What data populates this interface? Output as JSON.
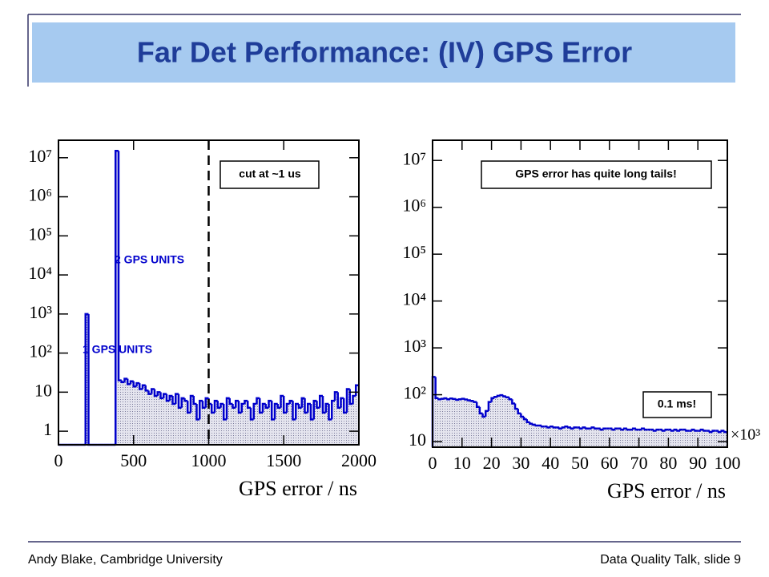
{
  "title": "Far Det Performance: (IV) GPS Error",
  "footer": {
    "left": "Andy Blake, Cambridge University",
    "right": "Data Quality Talk, slide 9"
  },
  "chart_data": [
    {
      "type": "histogram",
      "xlabel": "GPS error / ns",
      "log_y": true,
      "color": "#0000cc",
      "xlim": [
        0,
        2000
      ],
      "xticks": [
        0,
        500,
        1000,
        1500,
        2000
      ],
      "ylim": [
        0.45,
        28000000
      ],
      "yticks": [
        1,
        10,
        {
          "value": 100,
          "label": "10²"
        },
        {
          "value": 1000,
          "label": "10³"
        },
        {
          "value": 10000,
          "label": "10⁴"
        },
        {
          "value": 100000,
          "label": "10⁵"
        },
        {
          "value": 1000000,
          "label": "10⁶"
        },
        {
          "value": 10000000,
          "label": "10⁷"
        }
      ],
      "cut": 1000,
      "annotations": [
        "cut at ~1 us",
        "2 GPS UNITS",
        "1 GPS UNITS"
      ],
      "bins": [
        0,
        20,
        40,
        60,
        80,
        100,
        120,
        140,
        160,
        180,
        200,
        220,
        240,
        260,
        280,
        300,
        320,
        340,
        360,
        380,
        400,
        420,
        440,
        460,
        480,
        500,
        520,
        540,
        560,
        580,
        600,
        620,
        640,
        660,
        680,
        700,
        720,
        740,
        760,
        780,
        800,
        820,
        840,
        860,
        880,
        900,
        920,
        940,
        960,
        980,
        1000,
        1020,
        1040,
        1060,
        1080,
        1100,
        1120,
        1140,
        1160,
        1180,
        1200,
        1220,
        1240,
        1260,
        1280,
        1300,
        1320,
        1340,
        1360,
        1380,
        1400,
        1420,
        1440,
        1460,
        1480,
        1500,
        1520,
        1540,
        1560,
        1580,
        1600,
        1620,
        1640,
        1660,
        1680,
        1700,
        1720,
        1740,
        1760,
        1780,
        1800,
        1820,
        1840,
        1860,
        1880,
        1900,
        1920,
        1940,
        1960,
        1980,
        2000
      ],
      "counts": [
        0,
        0,
        0,
        0,
        0,
        0,
        0,
        0,
        0,
        1000,
        0,
        0,
        0,
        0,
        0,
        0,
        0,
        0,
        0,
        15000000,
        20,
        18,
        22,
        16,
        19,
        14,
        17,
        12,
        15,
        11,
        9,
        12,
        8,
        10,
        7,
        9,
        6,
        8,
        5,
        9,
        4,
        7,
        6,
        3,
        8,
        5,
        2,
        6,
        4,
        7,
        5,
        3,
        6,
        4,
        5,
        2,
        7,
        5,
        4,
        6,
        3,
        5,
        6,
        4,
        2,
        5,
        7,
        3,
        5,
        4,
        6,
        2,
        5,
        4,
        8,
        3,
        5,
        6,
        2,
        5,
        4,
        7,
        3,
        5,
        2,
        6,
        4,
        8,
        3,
        5,
        2,
        6,
        10,
        4,
        7,
        3,
        12,
        5,
        8,
        15
      ]
    },
    {
      "type": "histogram",
      "xlabel": "GPS error / ns",
      "x_multiplier": "×10³",
      "log_y": true,
      "color": "#0000cc",
      "xlim": [
        0,
        100
      ],
      "xticks": [
        0,
        10,
        20,
        30,
        40,
        50,
        60,
        70,
        80,
        90,
        100
      ],
      "ylim": [
        7.6,
        27000000
      ],
      "yticks": [
        10,
        {
          "value": 100,
          "label": "10²"
        },
        {
          "value": 1000,
          "label": "10³"
        },
        {
          "value": 10000,
          "label": "10⁴"
        },
        {
          "value": 100000,
          "label": "10⁵"
        },
        {
          "value": 1000000,
          "label": "10⁶"
        },
        {
          "value": 10000000,
          "label": "10⁷"
        }
      ],
      "annotations": [
        "GPS error has quite long tails!",
        "0.1 ms!"
      ],
      "bins": [
        0,
        1,
        2,
        3,
        4,
        5,
        6,
        7,
        8,
        9,
        10,
        11,
        12,
        13,
        14,
        15,
        16,
        17,
        18,
        19,
        20,
        21,
        22,
        23,
        24,
        25,
        26,
        27,
        28,
        29,
        30,
        31,
        32,
        33,
        34,
        35,
        36,
        37,
        38,
        39,
        40,
        41,
        42,
        43,
        44,
        45,
        46,
        47,
        48,
        49,
        50,
        51,
        52,
        53,
        54,
        55,
        56,
        57,
        58,
        59,
        60,
        61,
        62,
        63,
        64,
        65,
        66,
        67,
        68,
        69,
        70,
        71,
        72,
        73,
        74,
        75,
        76,
        77,
        78,
        79,
        80,
        81,
        82,
        83,
        84,
        85,
        86,
        87,
        88,
        89,
        90,
        91,
        92,
        93,
        94,
        95,
        96,
        97,
        98,
        99,
        100
      ],
      "counts": [
        240,
        85,
        80,
        82,
        84,
        80,
        83,
        81,
        78,
        80,
        82,
        79,
        76,
        74,
        70,
        55,
        40,
        34,
        45,
        70,
        85,
        90,
        95,
        98,
        92,
        88,
        80,
        65,
        50,
        40,
        34,
        30,
        26,
        24,
        23,
        22,
        22,
        21,
        21,
        20,
        21,
        20,
        20,
        19,
        20,
        21,
        20,
        19,
        20,
        20,
        19,
        20,
        19,
        19,
        20,
        19,
        19,
        18,
        19,
        19,
        19,
        18,
        19,
        19,
        18,
        19,
        18,
        18,
        19,
        18,
        18,
        19,
        18,
        18,
        18,
        17,
        18,
        18,
        17,
        18,
        18,
        17,
        18,
        17,
        18,
        18,
        17,
        17,
        18,
        17,
        17,
        18,
        17,
        17,
        16,
        17,
        17,
        16,
        17,
        16
      ]
    }
  ]
}
